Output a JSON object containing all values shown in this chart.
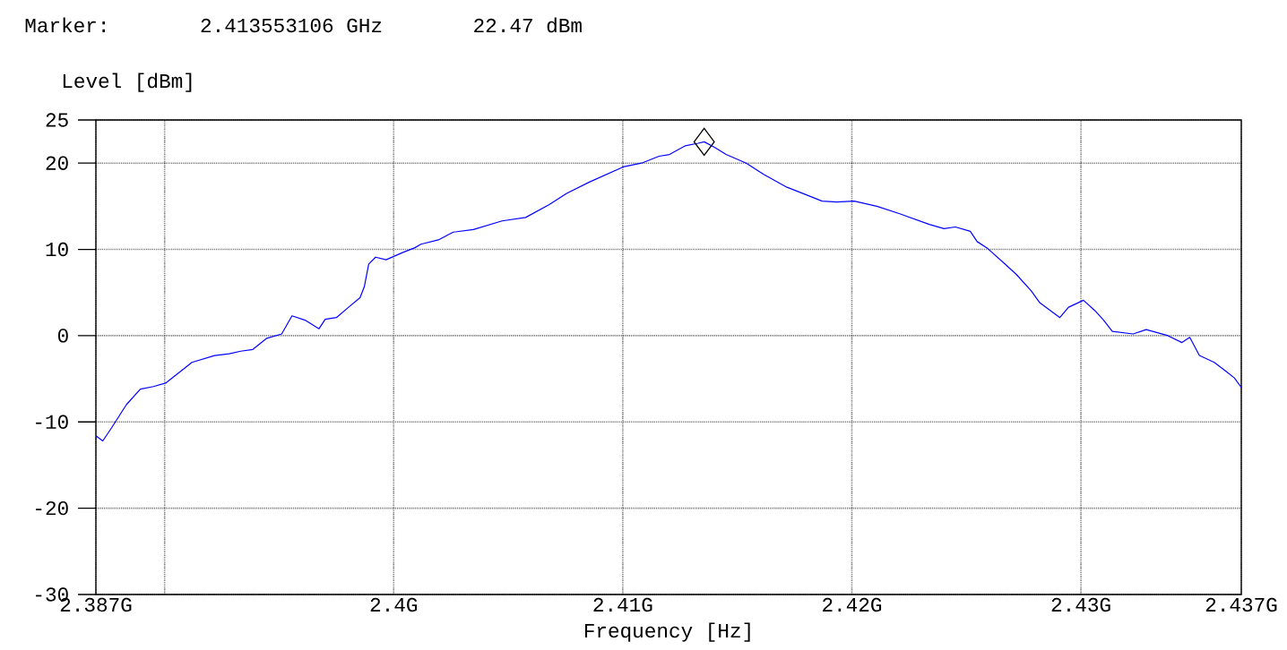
{
  "chart_data": {
    "type": "line",
    "xlabel": "Frequency [Hz]",
    "ylabel": "Level [dBm]",
    "annotations": [
      "Marker:",
      "2.413553106 GHz",
      "22.47 dBm"
    ],
    "xlim": [
      2.387,
      2.437
    ],
    "ylim": [
      -30,
      25
    ],
    "xticks": [
      {
        "value": 2.387,
        "label": "2.387G"
      },
      {
        "value": 2.39,
        "label": null
      },
      {
        "value": 2.4,
        "label": "2.4G"
      },
      {
        "value": 2.41,
        "label": "2.41G"
      },
      {
        "value": 2.42,
        "label": "2.42G"
      },
      {
        "value": 2.43,
        "label": "2.43G"
      },
      {
        "value": 2.437,
        "label": "2.437G"
      }
    ],
    "yticks": [
      25,
      20,
      10,
      0,
      -10,
      -20,
      -30
    ],
    "grid": true,
    "series": [
      {
        "type": "scatter",
        "color": "#000000",
        "marker": "diamond",
        "x": [
          2.413553
        ],
        "values": [
          22.47
        ]
      },
      {
        "color": "#0000ff",
        "x": [
          2.387,
          2.3873,
          2.38768,
          2.38833,
          2.38894,
          2.38951,
          2.39004,
          2.39081,
          2.39119,
          2.39218,
          2.39282,
          2.39332,
          2.39385,
          2.39446,
          2.39511,
          2.39556,
          2.39613,
          2.39674,
          2.39701,
          2.3975,
          2.39803,
          2.39853,
          2.39872,
          2.39891,
          2.39921,
          2.39967,
          2.40036,
          2.40093,
          2.40119,
          2.40195,
          2.4026,
          2.40348,
          2.40473,
          2.40576,
          2.40679,
          2.40755,
          2.40854,
          2.4093,
          2.41006,
          2.41082,
          2.41158,
          2.41204,
          2.41272,
          2.41329,
          2.413553,
          2.41402,
          2.41451,
          2.41539,
          2.41615,
          2.41717,
          2.41794,
          2.4187,
          2.41934,
          2.4201,
          2.42109,
          2.42212,
          2.42338,
          2.42402,
          2.42452,
          2.42517,
          2.42547,
          2.42593,
          2.42669,
          2.42718,
          2.42783,
          2.42821,
          2.42908,
          2.42946,
          2.43011,
          2.43061,
          2.43099,
          2.43137,
          2.43228,
          2.43285,
          2.4338,
          2.43441,
          2.43475,
          2.43517,
          2.43582,
          2.43632,
          2.4367,
          2.437
        ],
        "values": [
          -11.6,
          -12.2,
          -10.7,
          -8.0,
          -6.2,
          -5.9,
          -5.5,
          -3.9,
          -3.1,
          -2.3,
          -2.1,
          -1.8,
          -1.6,
          -0.3,
          0.2,
          2.3,
          1.8,
          0.8,
          1.9,
          2.1,
          3.3,
          4.4,
          5.7,
          8.3,
          9.1,
          8.8,
          9.6,
          10.2,
          10.6,
          11.1,
          12.0,
          12.3,
          13.3,
          13.7,
          15.2,
          16.5,
          17.8,
          18.7,
          19.6,
          20.0,
          20.8,
          21.0,
          22.0,
          22.3,
          22.47,
          21.8,
          21.0,
          20.0,
          18.7,
          17.2,
          16.4,
          15.6,
          15.5,
          15.6,
          15.0,
          14.1,
          12.9,
          12.4,
          12.6,
          12.1,
          10.9,
          10.1,
          8.3,
          7.1,
          5.2,
          3.8,
          2.1,
          3.3,
          4.1,
          2.9,
          1.8,
          0.5,
          0.2,
          0.7,
          0.0,
          -0.8,
          -0.2,
          -2.3,
          -3.1,
          -4.1,
          -4.9,
          -6.0
        ]
      }
    ]
  }
}
